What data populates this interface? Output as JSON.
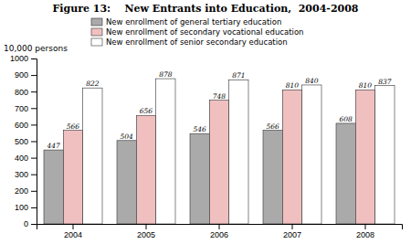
{
  "chart_data": {
    "type": "bar",
    "title": "Figure 13:    New Entrants into Education,  2004-2008",
    "ylabel": "10,000 persons",
    "categories": [
      2004,
      2005,
      2006,
      2007,
      2008
    ],
    "series": [
      {
        "name": "New enrollment of general tertiary education",
        "color": "#aaaaaa",
        "values": [
          447,
          504,
          546,
          566,
          608
        ]
      },
      {
        "name": "New enrollment of secondary vocational education",
        "color": "#f0c0c0",
        "values": [
          566,
          656,
          748,
          810,
          810
        ]
      },
      {
        "name": "New enrollment of senior secondary education",
        "color": "#ffffff",
        "values": [
          822,
          878,
          871,
          840,
          837
        ]
      }
    ],
    "ylim": [
      0,
      1000
    ],
    "yticks": [
      0,
      100,
      200,
      300,
      400,
      500,
      600,
      700,
      800,
      900,
      1000
    ],
    "grid": false,
    "legend": "upper left",
    "data_labels": true
  }
}
